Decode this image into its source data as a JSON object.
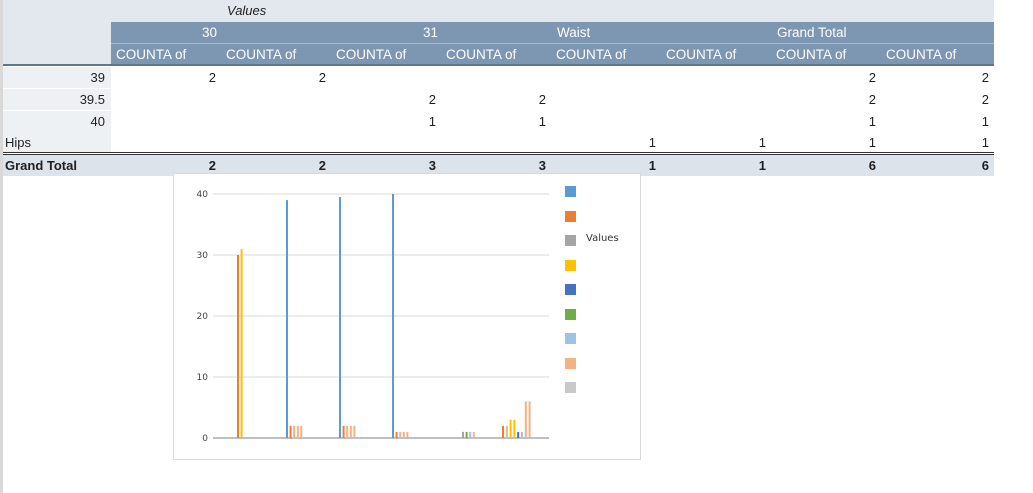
{
  "pivot": {
    "values_caption": "Values",
    "column_groups": [
      "30",
      "31",
      "Waist",
      "Grand Total"
    ],
    "sub_header": "COUNTA of",
    "rows": [
      {
        "label": "39",
        "align": "right",
        "cells": [
          "2",
          "",
          "2",
          "",
          "",
          "",
          "",
          "",
          "2",
          "2"
        ]
      },
      {
        "label": "39.5",
        "align": "right",
        "cells": [
          "",
          "",
          "",
          "",
          "2",
          "",
          "2",
          "",
          "2",
          "2"
        ]
      },
      {
        "label": "40",
        "align": "right",
        "cells": [
          "",
          "",
          "",
          "",
          "1",
          "",
          "1",
          "",
          "1",
          "1"
        ]
      },
      {
        "label": "Hips",
        "align": "left",
        "cells": [
          "",
          "",
          "",
          "",
          "",
          "",
          "",
          "",
          "",
          ""
        ]
      }
    ],
    "hips_values": [
      "1",
      "1",
      "1",
      "1"
    ],
    "grand_total": {
      "label": "Grand Total",
      "values": [
        "2",
        "2",
        "3",
        "3",
        "1",
        "1",
        "6",
        "6"
      ]
    }
  },
  "chart_data": {
    "type": "bar",
    "ylim": [
      0,
      40
    ],
    "y_ticks": [
      "40",
      "30",
      "20",
      "10",
      "0"
    ],
    "legend_label": "Values",
    "colors": [
      "#5b9bd5",
      "#ed7d31",
      "#a5a5a5",
      "#ffc000",
      "#4472c4",
      "#70ad47",
      "#9dc3e6",
      "#f4b183",
      "#c9c9c9"
    ],
    "bar_groups": [
      {
        "values": [
          30,
          31
        ]
      },
      {
        "values": [
          39,
          2,
          2,
          2,
          2
        ]
      },
      {
        "values": [
          39.5,
          2,
          2,
          2,
          2
        ]
      },
      {
        "values": [
          40,
          1,
          1,
          1,
          1
        ]
      },
      {
        "values": [
          1,
          1,
          1,
          1
        ]
      },
      {
        "values": [
          2,
          2,
          3,
          3,
          1,
          1,
          6,
          6
        ]
      }
    ]
  }
}
